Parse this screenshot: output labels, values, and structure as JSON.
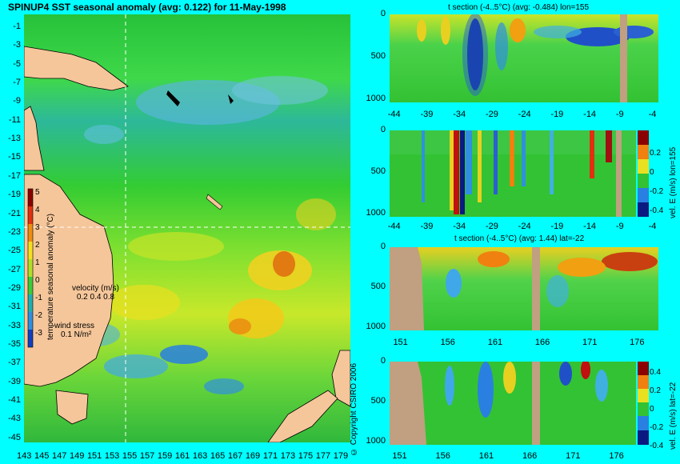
{
  "map": {
    "title": "SPINUP4 SST seasonal anomaly (avg: 0.122) for 11-May-1998",
    "lat_ticks": [
      "-1",
      "-3",
      "-5",
      "-7",
      "-9",
      "-11",
      "-13",
      "-15",
      "-17",
      "-19",
      "-21",
      "-23",
      "-25",
      "-27",
      "-29",
      "-31",
      "-33",
      "-35",
      "-37",
      "-39",
      "-41",
      "-43",
      "-45"
    ],
    "lon_ticks": [
      "143",
      "145",
      "147",
      "149",
      "151",
      "153",
      "155",
      "157",
      "159",
      "161",
      "163",
      "165",
      "167",
      "169",
      "171",
      "173",
      "175",
      "177",
      "179"
    ],
    "colorbar": {
      "label": "temperature seasonal anomaly (°C)",
      "ticks": [
        "5",
        "4",
        "3",
        "2",
        "1",
        "0",
        "-1",
        "-2",
        "-3",
        "-4"
      ],
      "range": [
        -4,
        5
      ]
    },
    "velocity_legend": {
      "title": "velocity (m/s)",
      "values": "0.2 0.4 0.8"
    },
    "wind_legend": {
      "title": "wind stress",
      "value": "0.1 N/m²"
    },
    "crosshair": {
      "lon": 155,
      "lat": -22
    }
  },
  "copyright": "© Copyright CSIRO 2006",
  "panels": [
    {
      "id": "t-lon",
      "title": "t section (-4..5°C) (avg: -0.484) lon=155",
      "x_ticks": [
        "-44",
        "-39",
        "-34",
        "-29",
        "-24",
        "-19",
        "-14",
        "-9",
        "-4"
      ],
      "y_ticks": [
        "0",
        "500",
        "1000"
      ]
    },
    {
      "id": "v-lon",
      "title": "",
      "x_ticks": [
        "-44",
        "-39",
        "-34",
        "-29",
        "-24",
        "-19",
        "-14",
        "-9",
        "-4"
      ],
      "y_ticks": [
        "0",
        "500",
        "1000"
      ],
      "colorbar_ticks": [
        "0.2",
        "0",
        "-0.2",
        "-0.4"
      ],
      "colorbar_label": "vel. E (m/s) lon=155"
    },
    {
      "id": "t-lat",
      "title": "t section (-4..5°C) (avg: 1.44) lat=-22",
      "x_ticks": [
        "151",
        "156",
        "161",
        "166",
        "171",
        "176"
      ],
      "y_ticks": [
        "0",
        "500",
        "1000"
      ]
    },
    {
      "id": "v-lat",
      "title": "",
      "x_ticks": [
        "151",
        "156",
        "161",
        "166",
        "171",
        "176"
      ],
      "y_ticks": [
        "0",
        "500",
        "1000"
      ],
      "colorbar_ticks": [
        "0.4",
        "0.2",
        "0",
        "-0.2",
        "-0.4"
      ],
      "colorbar_label": "vel. E (m/s) lat=-22"
    }
  ],
  "chart_data": [
    {
      "type": "heatmap",
      "title": "SPINUP4 SST seasonal anomaly (avg: 0.122) for 11-May-1998",
      "xlabel": "",
      "ylabel": "",
      "xlim": [
        143,
        180
      ],
      "ylim": [
        -45,
        0
      ],
      "value_range": [
        -4,
        5
      ],
      "colorbar_label": "temperature seasonal anomaly (°C)",
      "average": 0.122
    },
    {
      "type": "heatmap",
      "title": "t section (-4..5°C) (avg: -0.484) lon=155",
      "xlim": [
        -45,
        -1
      ],
      "ylim": [
        1050,
        0
      ],
      "value_range": [
        -4,
        5
      ],
      "average": -0.484
    },
    {
      "type": "heatmap",
      "title": "",
      "xlim": [
        -45,
        -1
      ],
      "ylim": [
        1050,
        0
      ],
      "value_range": [
        -0.4,
        0.3
      ],
      "colorbar_label": "vel. E (m/s) lon=155"
    },
    {
      "type": "heatmap",
      "title": "t section (-4..5°C) (avg: 1.44) lat=-22",
      "xlim": [
        149,
        180
      ],
      "ylim": [
        1050,
        0
      ],
      "value_range": [
        -4,
        5
      ],
      "average": 1.44
    },
    {
      "type": "heatmap",
      "title": "",
      "xlim": [
        149,
        180
      ],
      "ylim": [
        1050,
        0
      ],
      "value_range": [
        -0.4,
        0.4
      ],
      "colorbar_label": "vel. E (m/s) lat=-22"
    }
  ]
}
